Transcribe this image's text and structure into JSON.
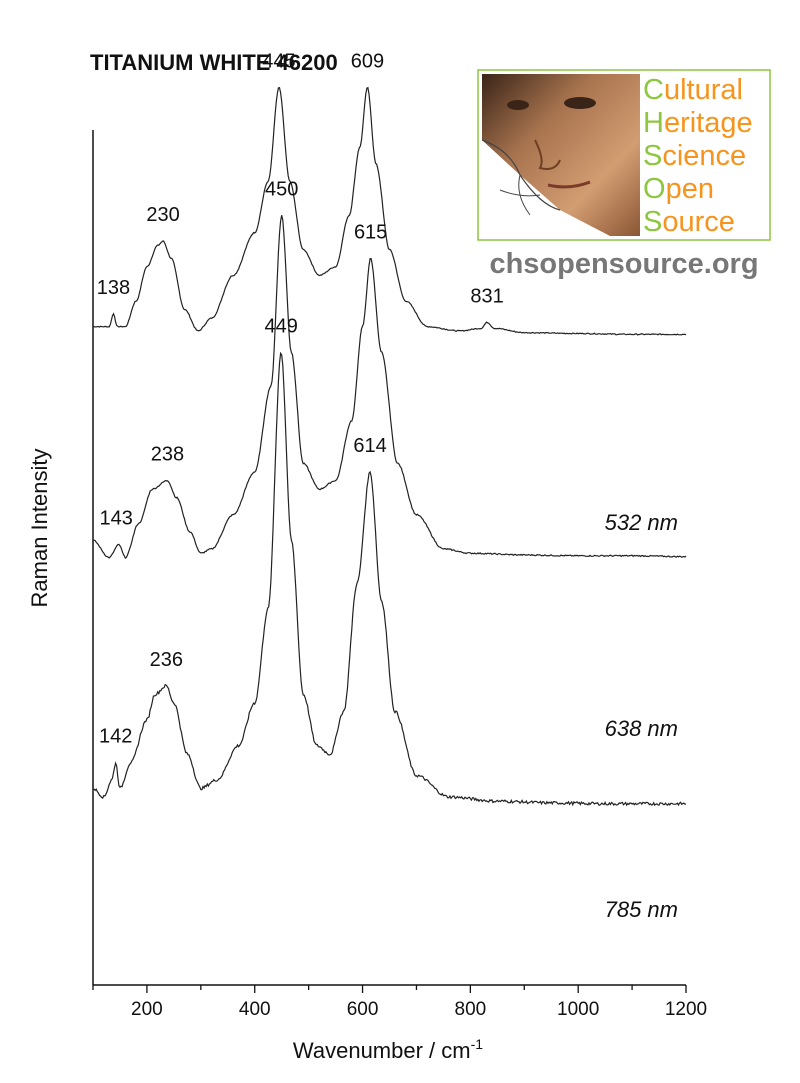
{
  "chart_data": {
    "type": "line",
    "title": "TITANIUM WHITE 46200",
    "xlabel": "Wavenumber / cm",
    "xlabel_sup": "-1",
    "ylabel": "Raman Intensity",
    "xlim": [
      100,
      1200
    ],
    "ylim": [
      0,
      100
    ],
    "xticks": [
      200,
      400,
      600,
      800,
      1000,
      1200
    ],
    "grid": false,
    "series": [
      {
        "name": "532 nm",
        "baseline": 76,
        "points": [
          [
            100,
            77
          ],
          [
            130,
            77
          ],
          [
            138,
            78.5
          ],
          [
            145,
            77
          ],
          [
            160,
            77
          ],
          [
            180,
            80
          ],
          [
            200,
            84
          ],
          [
            220,
            86.5
          ],
          [
            230,
            87
          ],
          [
            245,
            85
          ],
          [
            270,
            79
          ],
          [
            295,
            76.5
          ],
          [
            320,
            78
          ],
          [
            360,
            83
          ],
          [
            400,
            88
          ],
          [
            425,
            94
          ],
          [
            445,
            105
          ],
          [
            465,
            94
          ],
          [
            490,
            86
          ],
          [
            520,
            83
          ],
          [
            550,
            84
          ],
          [
            575,
            90
          ],
          [
            595,
            98
          ],
          [
            609,
            105
          ],
          [
            625,
            96
          ],
          [
            650,
            86
          ],
          [
            680,
            80
          ],
          [
            720,
            77
          ],
          [
            780,
            76.5
          ],
          [
            820,
            76.8
          ],
          [
            831,
            77.5
          ],
          [
            845,
            76.8
          ],
          [
            900,
            76.3
          ],
          [
            1000,
            76.2
          ],
          [
            1100,
            76.1
          ],
          [
            1200,
            76.1
          ]
        ],
        "peaks": [
          {
            "label": "138",
            "x": 138,
            "y": 78.5
          },
          {
            "label": "230",
            "x": 230,
            "y": 87
          },
          {
            "label": "445",
            "x": 445,
            "y": 105
          },
          {
            "label": "609",
            "x": 609,
            "y": 105
          },
          {
            "label": "831",
            "x": 831,
            "y": 77.5
          }
        ]
      },
      {
        "name": "638 nm",
        "baseline": 50,
        "points": [
          [
            100,
            52
          ],
          [
            130,
            50
          ],
          [
            148,
            51.5
          ],
          [
            160,
            50
          ],
          [
            185,
            54
          ],
          [
            210,
            58
          ],
          [
            238,
            59
          ],
          [
            255,
            57
          ],
          [
            280,
            53
          ],
          [
            300,
            50.5
          ],
          [
            320,
            51
          ],
          [
            360,
            55
          ],
          [
            400,
            60
          ],
          [
            430,
            70
          ],
          [
            450,
            90
          ],
          [
            468,
            74
          ],
          [
            490,
            61
          ],
          [
            520,
            58
          ],
          [
            550,
            59
          ],
          [
            580,
            66
          ],
          [
            600,
            77
          ],
          [
            615,
            85
          ],
          [
            635,
            74
          ],
          [
            665,
            61
          ],
          [
            700,
            55
          ],
          [
            750,
            51
          ],
          [
            800,
            50.5
          ],
          [
            900,
            50.3
          ],
          [
            1000,
            50.2
          ],
          [
            1100,
            50.2
          ],
          [
            1200,
            50.1
          ]
        ],
        "peaks": [
          {
            "label": "143",
            "x": 143,
            "y": 51.5
          },
          {
            "label": "238",
            "x": 238,
            "y": 59
          },
          {
            "label": "450",
            "x": 450,
            "y": 90
          },
          {
            "label": "615",
            "x": 615,
            "y": 85
          }
        ]
      },
      {
        "name": "785 nm",
        "baseline": 21,
        "points": [
          [
            100,
            23
          ],
          [
            120,
            22
          ],
          [
            135,
            24
          ],
          [
            142,
            26
          ],
          [
            150,
            23
          ],
          [
            170,
            26
          ],
          [
            200,
            31
          ],
          [
            215,
            34
          ],
          [
            236,
            35
          ],
          [
            250,
            33
          ],
          [
            275,
            27
          ],
          [
            300,
            23
          ],
          [
            330,
            24
          ],
          [
            370,
            28
          ],
          [
            400,
            33
          ],
          [
            425,
            44
          ],
          [
            449,
            74
          ],
          [
            468,
            52
          ],
          [
            490,
            34
          ],
          [
            515,
            28
          ],
          [
            540,
            27
          ],
          [
            565,
            32
          ],
          [
            590,
            47
          ],
          [
            614,
            60
          ],
          [
            635,
            45
          ],
          [
            660,
            32
          ],
          [
            700,
            24.5
          ],
          [
            760,
            22
          ],
          [
            850,
            21.5
          ],
          [
            950,
            21.3
          ],
          [
            1050,
            21.2
          ],
          [
            1100,
            21.2
          ],
          [
            1200,
            21.2
          ]
        ],
        "peaks": [
          {
            "label": "142",
            "x": 142,
            "y": 26
          },
          {
            "label": "236",
            "x": 236,
            "y": 35
          },
          {
            "label": "449",
            "x": 449,
            "y": 74
          },
          {
            "label": "614",
            "x": 614,
            "y": 60
          }
        ]
      }
    ]
  },
  "logo": {
    "words": [
      "Cultural",
      "Heritage",
      "Science",
      "Open",
      "Source"
    ],
    "url": "chsopensource.org",
    "green": "#8dc63f",
    "orange": "#f7941d",
    "border": "#8dc63f"
  }
}
